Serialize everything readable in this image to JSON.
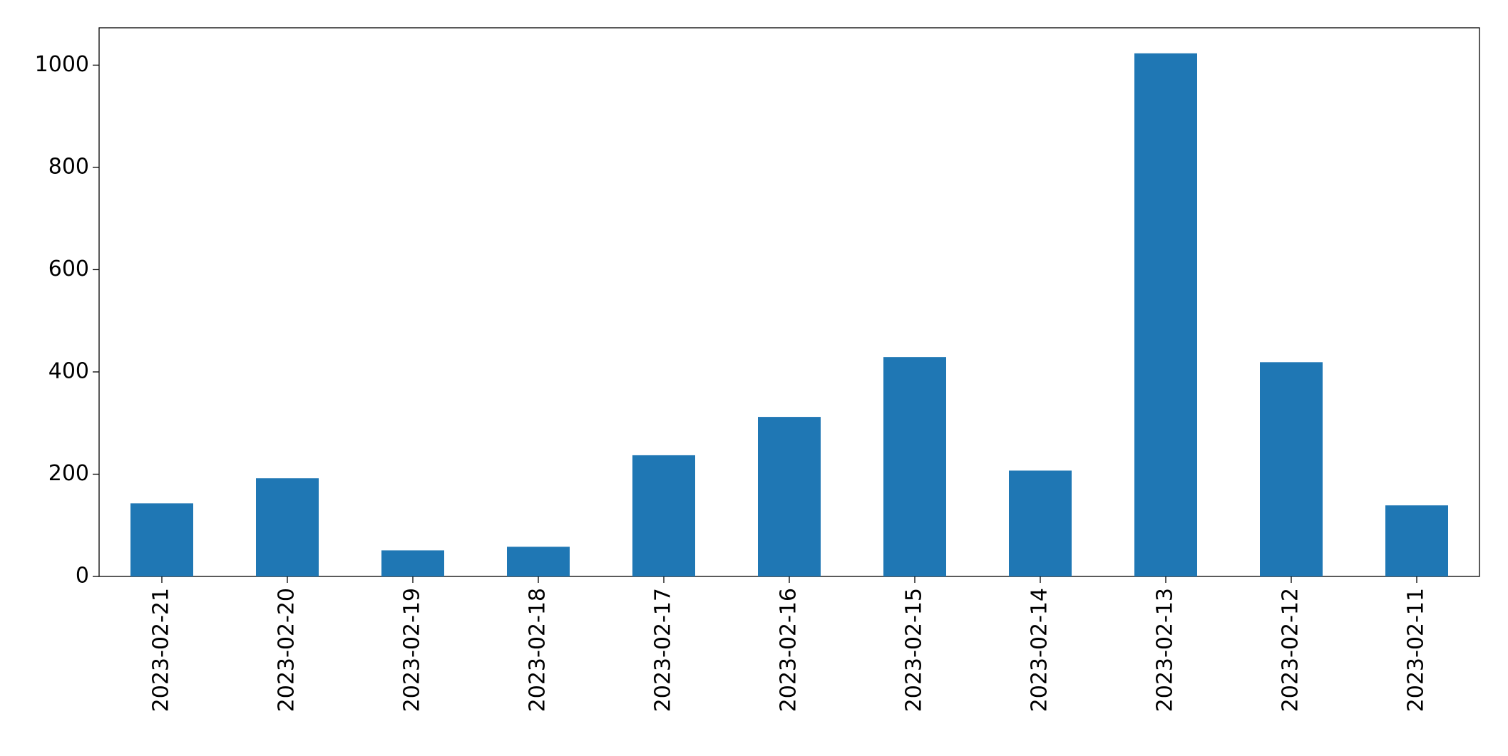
{
  "chart_data": {
    "type": "bar",
    "categories": [
      "2023-02-21",
      "2023-02-20",
      "2023-02-19",
      "2023-02-18",
      "2023-02-17",
      "2023-02-16",
      "2023-02-15",
      "2023-02-14",
      "2023-02-13",
      "2023-02-12",
      "2023-02-11"
    ],
    "values": [
      143,
      192,
      51,
      58,
      237,
      312,
      429,
      207,
      1023,
      419,
      139
    ],
    "color": "#1f77b4",
    "ylim": [
      0,
      1073
    ],
    "yticks": [
      0,
      200,
      400,
      600,
      800,
      1000
    ],
    "grid": false
  }
}
